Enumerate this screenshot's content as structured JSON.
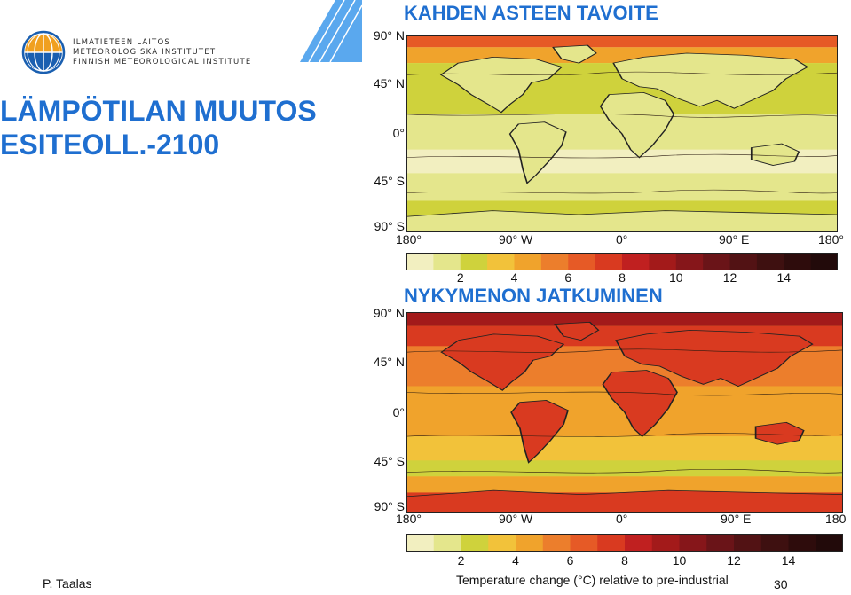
{
  "logo": {
    "lines": [
      "ILMATIETEEN LAITOS",
      "METEOROLOGISKA INSTITUTET",
      "FINNISH METEOROLOGICAL INSTITUTE"
    ],
    "icon": "fmi-logo-icon"
  },
  "slide": {
    "title_lines": [
      "LÄMPÖTILAN MUUTOS",
      "ESITEOLL.-2100"
    ],
    "author": "P. Taalas",
    "page_number": "30"
  },
  "colors": {
    "title_blue": "#1f6fd0",
    "accent_blue": "#5aa8ee"
  },
  "chart_data": [
    {
      "type": "heatmap",
      "title": "KAHDEN ASTEEN TAVOITE",
      "y_tick_labels": [
        "90° N",
        "45° N",
        "0°",
        "45° S",
        "90° S"
      ],
      "x_tick_labels": [
        "180°",
        "90° W",
        "0°",
        "90° E",
        "180°"
      ],
      "colorbar": {
        "tick_labels": [
          "2",
          "4",
          "6",
          "8",
          "10",
          "12",
          "14"
        ],
        "range": [
          0,
          16
        ],
        "step": 1,
        "colors": [
          "#f2efc0",
          "#e4e68c",
          "#cfd23c",
          "#f2c23a",
          "#f0a32c",
          "#ec7e2c",
          "#e65a26",
          "#d93a20",
          "#c02020",
          "#a31a1a",
          "#86161a",
          "#6a1418",
          "#521214",
          "#3e1010",
          "#2e0c0c",
          "#220a0a"
        ]
      }
    },
    {
      "type": "heatmap",
      "title": "NYKYMENON JATKUMINEN",
      "y_tick_labels": [
        "90° N",
        "45° N",
        "0°",
        "45° S",
        "90° S"
      ],
      "x_tick_labels": [
        "180°",
        "90° W",
        "0°",
        "90° E",
        "180"
      ],
      "colorbar": {
        "tick_labels": [
          "2",
          "4",
          "6",
          "8",
          "10",
          "12",
          "14"
        ],
        "label": "Temperature change (°C) relative to pre-industrial",
        "range": [
          0,
          16
        ],
        "step": 1,
        "colors": [
          "#f2efc0",
          "#e4e68c",
          "#cfd23c",
          "#f2c23a",
          "#f0a32c",
          "#ec7e2c",
          "#e65a26",
          "#d93a20",
          "#c02020",
          "#a31a1a",
          "#86161a",
          "#6a1418",
          "#521214",
          "#3e1010",
          "#2e0c0c",
          "#220a0a"
        ]
      }
    }
  ]
}
